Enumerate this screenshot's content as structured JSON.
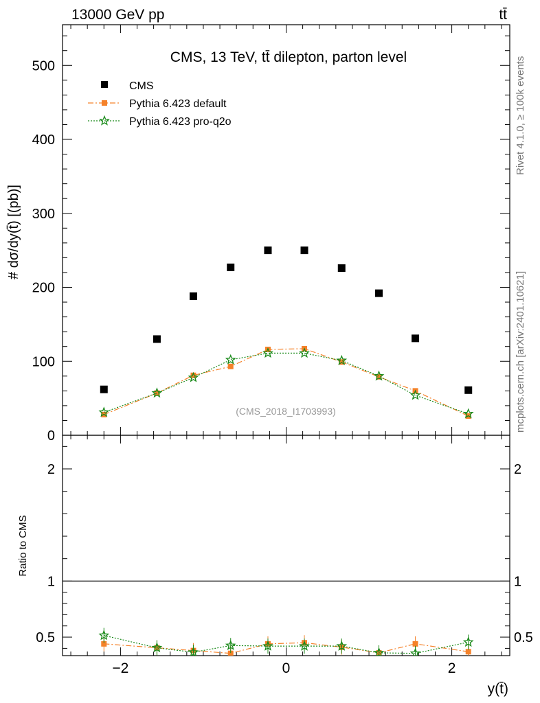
{
  "header": {
    "left": "13000 GeV pp",
    "right": "tt̄"
  },
  "side_labels": {
    "rivet": "Rivet 4.1.0, ≥ 100k events",
    "mcplots": "mcplots.cern.ch [arXiv:2401.10621]"
  },
  "chart_data": {
    "type": "scatter",
    "title": "CMS, 13 TeV, tt̄ dilepton, parton level",
    "watermark": "(CMS_2018_I1703993)",
    "xlabel": "y(t̄)",
    "main_ylabel": "# dσ/dy(t̄) [(pb)]",
    "ratio_ylabel": "Ratio to CMS",
    "xlim": [
      -2.7,
      2.7
    ],
    "main_ylim": [
      0,
      555
    ],
    "ratio_ylim": [
      0.335,
      2.3
    ],
    "x_ticks": [
      -2,
      0,
      2
    ],
    "x_tick_labels": [
      "−2",
      "0",
      "2"
    ],
    "main_y_ticks": [
      0,
      100,
      200,
      300,
      400,
      500
    ],
    "main_y_tick_labels": [
      "0",
      "100",
      "200",
      "300",
      "400",
      "500"
    ],
    "ratio_y_ticks": [
      0.5,
      1,
      2
    ],
    "ratio_y_tick_labels": [
      "0.5",
      "1",
      "2"
    ],
    "x": [
      -2.2,
      -1.56,
      -1.12,
      -0.67,
      -0.22,
      0.22,
      0.67,
      1.12,
      1.56,
      2.2
    ],
    "series": [
      {
        "name": "CMS",
        "color": "#000000",
        "marker": "square",
        "values": [
          62,
          130,
          188,
          227,
          250,
          250,
          226,
          192,
          131,
          61
        ],
        "ratio": [
          1,
          1,
          1,
          1,
          1,
          1,
          1,
          1,
          1,
          1
        ]
      },
      {
        "name": "Pythia 6.423 default",
        "color": "#f5822a",
        "marker": "square",
        "line": "dashdot",
        "values": [
          28,
          57,
          81,
          93,
          116,
          117,
          99,
          79,
          60,
          26
        ],
        "ratio": [
          0.44,
          0.405,
          0.38,
          0.355,
          0.44,
          0.45,
          0.41,
          0.36,
          0.44,
          0.37
        ]
      },
      {
        "name": "Pythia 6.423 pro-q2o",
        "color": "#1a8a1a",
        "marker": "star",
        "line": "dotted",
        "values": [
          31,
          57,
          78,
          102,
          111,
          111,
          101,
          80,
          54,
          29
        ],
        "ratio": [
          0.515,
          0.405,
          0.365,
          0.425,
          0.42,
          0.42,
          0.42,
          0.36,
          0.355,
          0.455
        ]
      }
    ]
  }
}
